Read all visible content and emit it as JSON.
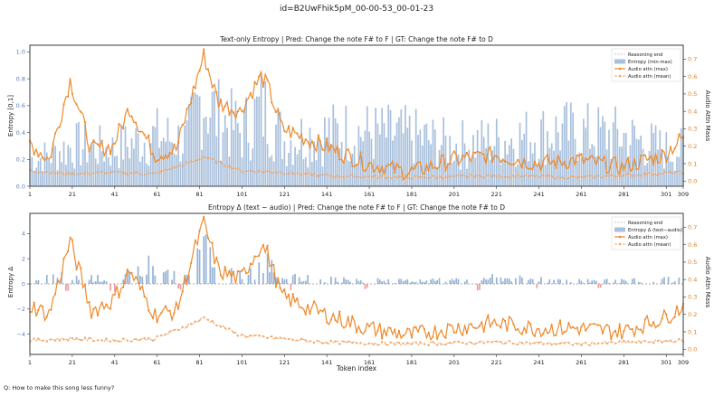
{
  "figure": {
    "suptitle": "id=B2UwFhik5pM_00-00-53_00-01-23",
    "question": "Q: How to make this song less funny?"
  },
  "colors": {
    "entropy": "#7b9fc9",
    "entropy_fill": "#a9c0dc",
    "positive_delta": "#7b9fc9",
    "negative_delta": "#e8848c",
    "audio_max": "#ee8a2c",
    "audio_mean": "#f0a565",
    "reasoning_end": "#c9a0c9"
  },
  "chart_data": [
    {
      "type": "bar",
      "title": "Text-only Entropy  |  Pred: Change the note F# to F  |  GT: Change the note F# to D",
      "ylabel": "Entropy [0,1]",
      "y2label": "Audio Attn Mass",
      "xlim": [
        1,
        309
      ],
      "ylim": [
        0,
        1.05
      ],
      "y2lim": [
        -0.03,
        0.78
      ],
      "xticks": [
        "1",
        "21",
        "41",
        "61",
        "81",
        "101",
        "121",
        "141",
        "161",
        "181",
        "201",
        "221",
        "241",
        "261",
        "281",
        "301",
        "309"
      ],
      "yticks": [
        "0.0",
        "0.2",
        "0.4",
        "0.6",
        "0.8",
        "1.0"
      ],
      "y2ticks": [
        "0.0",
        "0.1",
        "0.2",
        "0.3",
        "0.4",
        "0.5",
        "0.6",
        "0.7"
      ],
      "legend": [
        "Reasoning end",
        "Entropy (min-max)",
        "Audio attn (max)",
        "Audio attn (mean)"
      ],
      "legend_position": "upper right",
      "entropy_peaks": [
        [
          5,
          0.3
        ],
        [
          22,
          0.45
        ],
        [
          40,
          0.4
        ],
        [
          60,
          0.55
        ],
        [
          75,
          0.5
        ],
        [
          82,
          1.0
        ],
        [
          90,
          0.75
        ],
        [
          101,
          0.6
        ],
        [
          110,
          0.85
        ],
        [
          113,
          0.8
        ],
        [
          121,
          0.5
        ],
        [
          130,
          0.55
        ],
        [
          150,
          0.6
        ],
        [
          180,
          0.55
        ],
        [
          200,
          0.45
        ],
        [
          222,
          0.5
        ],
        [
          250,
          0.6
        ],
        [
          281,
          0.55
        ],
        [
          301,
          0.4
        ]
      ],
      "audio_max_points": [
        [
          1,
          0.22
        ],
        [
          10,
          0.12
        ],
        [
          20,
          0.58
        ],
        [
          30,
          0.18
        ],
        [
          40,
          0.2
        ],
        [
          48,
          0.42
        ],
        [
          60,
          0.15
        ],
        [
          70,
          0.18
        ],
        [
          80,
          0.6
        ],
        [
          83,
          0.72
        ],
        [
          90,
          0.45
        ],
        [
          100,
          0.4
        ],
        [
          110,
          0.6
        ],
        [
          113,
          0.55
        ],
        [
          120,
          0.3
        ],
        [
          130,
          0.25
        ],
        [
          140,
          0.2
        ],
        [
          160,
          0.1
        ],
        [
          180,
          0.05
        ],
        [
          200,
          0.12
        ],
        [
          220,
          0.15
        ],
        [
          240,
          0.1
        ],
        [
          260,
          0.12
        ],
        [
          280,
          0.08
        ],
        [
          300,
          0.15
        ],
        [
          309,
          0.25
        ]
      ],
      "audio_mean_points": [
        [
          1,
          0.06
        ],
        [
          20,
          0.04
        ],
        [
          40,
          0.05
        ],
        [
          60,
          0.04
        ],
        [
          80,
          0.12
        ],
        [
          83,
          0.14
        ],
        [
          100,
          0.06
        ],
        [
          120,
          0.05
        ],
        [
          140,
          0.03
        ],
        [
          180,
          0.02
        ],
        [
          220,
          0.03
        ],
        [
          260,
          0.02
        ],
        [
          309,
          0.05
        ]
      ]
    },
    {
      "type": "bar",
      "title": "Entropy Δ (text − audio)  |  Pred: Change the note F# to F  |  GT: Change the note F# to D",
      "ylabel": "Entropy Δ",
      "y2label": "Audio Attn Mass",
      "xlabel": "Token index",
      "xlim": [
        1,
        309
      ],
      "ylim": [
        -5.6,
        5.6
      ],
      "y2lim": [
        -0.03,
        0.78
      ],
      "xticks": [
        "1",
        "21",
        "41",
        "61",
        "81",
        "101",
        "121",
        "141",
        "161",
        "181",
        "201",
        "221",
        "241",
        "261",
        "281",
        "301",
        "309"
      ],
      "yticks": [
        "−4",
        "−2",
        "0",
        "2",
        "4"
      ],
      "y2ticks": [
        "0.0",
        "0.1",
        "0.2",
        "0.3",
        "0.4",
        "0.5",
        "0.6",
        "0.7"
      ],
      "legend": [
        "Reasoning end",
        "Entropy Δ (text−audio)",
        "Audio attn (max)",
        "Audio attn (mean)"
      ],
      "legend_position": "upper right",
      "delta_peaks": [
        [
          5,
          0.8
        ],
        [
          15,
          1.0
        ],
        [
          22,
          1.2
        ],
        [
          30,
          0.8
        ],
        [
          45,
          0.5
        ],
        [
          55,
          3.2
        ],
        [
          62,
          1.8
        ],
        [
          75,
          0.8
        ],
        [
          80,
          3.4
        ],
        [
          83,
          5.0
        ],
        [
          86,
          4.2
        ],
        [
          90,
          2.8
        ],
        [
          100,
          1.5
        ],
        [
          110,
          2.2
        ],
        [
          113,
          2.6
        ],
        [
          120,
          1.0
        ],
        [
          140,
          0.6
        ],
        [
          160,
          0.5
        ],
        [
          180,
          0.4
        ],
        [
          200,
          0.6
        ],
        [
          220,
          0.8
        ],
        [
          250,
          0.5
        ],
        [
          281,
          0.4
        ],
        [
          301,
          0.7
        ]
      ],
      "delta_neg": [
        [
          18,
          -0.8
        ],
        [
          40,
          -0.7
        ],
        [
          72,
          -0.5
        ],
        [
          125,
          -0.6
        ],
        [
          160,
          -0.5
        ],
        [
          212,
          -0.7
        ],
        [
          240,
          -0.6
        ],
        [
          270,
          -0.5
        ]
      ],
      "audio_max_points": [
        [
          1,
          0.25
        ],
        [
          10,
          0.2
        ],
        [
          20,
          0.62
        ],
        [
          30,
          0.22
        ],
        [
          40,
          0.28
        ],
        [
          48,
          0.45
        ],
        [
          60,
          0.2
        ],
        [
          70,
          0.22
        ],
        [
          80,
          0.62
        ],
        [
          83,
          0.72
        ],
        [
          90,
          0.45
        ],
        [
          100,
          0.4
        ],
        [
          110,
          0.6
        ],
        [
          113,
          0.55
        ],
        [
          120,
          0.3
        ],
        [
          130,
          0.25
        ],
        [
          140,
          0.2
        ],
        [
          160,
          0.12
        ],
        [
          180,
          0.08
        ],
        [
          200,
          0.12
        ],
        [
          220,
          0.15
        ],
        [
          240,
          0.12
        ],
        [
          260,
          0.12
        ],
        [
          280,
          0.1
        ],
        [
          300,
          0.18
        ],
        [
          309,
          0.25
        ]
      ],
      "audio_mean_points": [
        [
          1,
          0.05
        ],
        [
          20,
          0.06
        ],
        [
          40,
          0.05
        ],
        [
          60,
          0.06
        ],
        [
          80,
          0.16
        ],
        [
          83,
          0.18
        ],
        [
          100,
          0.08
        ],
        [
          120,
          0.06
        ],
        [
          140,
          0.04
        ],
        [
          180,
          0.03
        ],
        [
          220,
          0.04
        ],
        [
          260,
          0.03
        ],
        [
          309,
          0.05
        ]
      ]
    }
  ]
}
